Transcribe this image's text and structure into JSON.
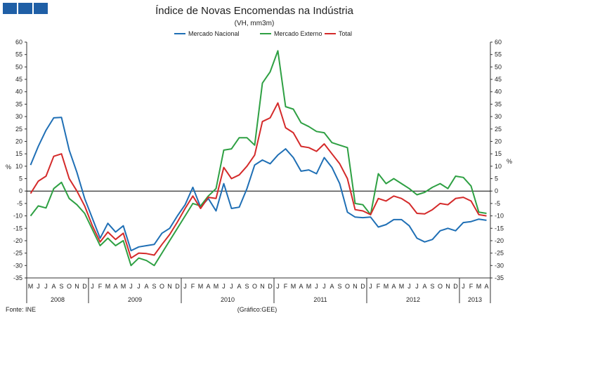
{
  "chart_data": {
    "type": "line",
    "title": "Índice de Novas Encomendas na Indústria",
    "subtitle": "(VH, mm3m)",
    "ylabel_left": "%",
    "ylabel_right": "%",
    "ylim": [
      -35,
      60
    ],
    "yticks": [
      60,
      55,
      50,
      45,
      40,
      35,
      30,
      25,
      20,
      15,
      10,
      5,
      0,
      -5,
      -10,
      -15,
      -20,
      -25,
      -30,
      -35
    ],
    "months": [
      "M",
      "J",
      "J",
      "A",
      "S",
      "O",
      "N",
      "D",
      "J",
      "F",
      "M",
      "A",
      "M",
      "J",
      "J",
      "A",
      "S",
      "O",
      "N",
      "D",
      "J",
      "F",
      "M",
      "A",
      "M",
      "J",
      "J",
      "A",
      "S",
      "O",
      "N",
      "D",
      "J",
      "F",
      "M",
      "A",
      "M",
      "J",
      "J",
      "A",
      "S",
      "O",
      "N",
      "D",
      "J",
      "F",
      "M",
      "A",
      "M",
      "J",
      "J",
      "A",
      "S",
      "O",
      "N",
      "D",
      "J",
      "F",
      "M",
      "A"
    ],
    "years": [
      {
        "label": "2008",
        "start": 0,
        "count": 8
      },
      {
        "label": "2009",
        "start": 8,
        "count": 12
      },
      {
        "label": "2010",
        "start": 20,
        "count": 12
      },
      {
        "label": "2011",
        "start": 32,
        "count": 12
      },
      {
        "label": "2012",
        "start": 44,
        "count": 12
      },
      {
        "label": "2013",
        "start": 56,
        "count": 4
      }
    ],
    "series": [
      {
        "name": "Mercado Nacional",
        "color": "#1f6fb5",
        "values": [
          10.5,
          18,
          24.5,
          29.5,
          29.7,
          16.5,
          7.5,
          -3,
          -11,
          -19,
          -13,
          -16.5,
          -14,
          -24,
          -22.5,
          -22,
          -21.5,
          -17,
          -15,
          -10,
          -5.5,
          1.5,
          -6.5,
          -3,
          -8,
          3,
          -7,
          -6.5,
          1,
          10.5,
          12.5,
          11,
          14.5,
          17,
          13.5,
          8,
          8.5,
          7,
          13.5,
          9.5,
          3,
          -8.5,
          -10.5,
          -10.7,
          -10.5,
          -14.5,
          -13.5,
          -11.5,
          -11.5,
          -14,
          -19,
          -20.5,
          -19.5,
          -16,
          -15,
          -16,
          -12.7,
          -12.3,
          -11.3,
          -11.8
        ]
      },
      {
        "name": "Mercado Externo",
        "color": "#2ea043",
        "values": [
          -10,
          -6,
          -6.8,
          1,
          3.5,
          -3,
          -5.5,
          -9,
          -15.5,
          -22,
          -19,
          -22,
          -20,
          -30,
          -27,
          -28,
          -30,
          -25,
          -20,
          -15,
          -10,
          -5,
          -6,
          -2,
          1,
          16.5,
          17,
          21.5,
          21.5,
          18.5,
          43.5,
          48,
          56.5,
          34,
          33,
          27.5,
          26,
          24,
          23.5,
          19.5,
          18.5,
          17.5,
          -5,
          -5.5,
          -9.5,
          7,
          3,
          5,
          3,
          1,
          -1.5,
          -0.5,
          1.5,
          3,
          1,
          6,
          5.5,
          2,
          -8.5,
          -9
        ]
      },
      {
        "name": "Total",
        "color": "#d42a2a",
        "values": [
          -1,
          4,
          6,
          14,
          15,
          5,
          0,
          -6,
          -14,
          -20.5,
          -16.5,
          -19.5,
          -17,
          -27,
          -25,
          -25.2,
          -25.8,
          -21.5,
          -17.5,
          -12.5,
          -7,
          -2,
          -7,
          -2.5,
          -3,
          9.5,
          5,
          6.5,
          10,
          14.5,
          28,
          29.5,
          35.5,
          25.5,
          23.5,
          18,
          17.5,
          16,
          19,
          15,
          11,
          5,
          -7.5,
          -8,
          -9.5,
          -3,
          -4,
          -2,
          -3,
          -5,
          -9,
          -9.2,
          -7.5,
          -5,
          -5.5,
          -3,
          -2.5,
          -4,
          -9.5,
          -10
        ]
      }
    ],
    "footer_left": "Fonte: INE",
    "footer_center": "(Gráfico:GEE)"
  }
}
